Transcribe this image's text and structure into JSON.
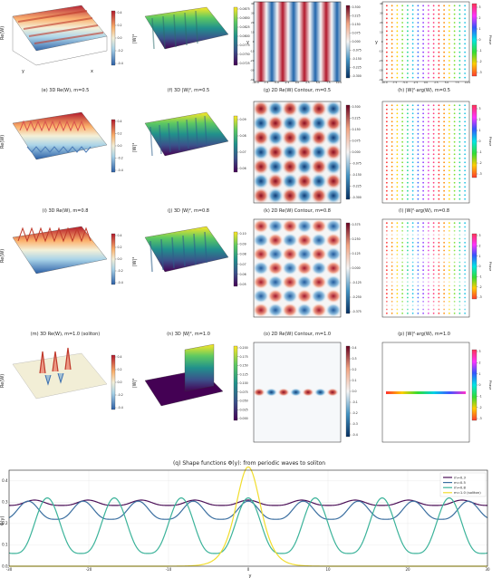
{
  "panels": {
    "row1": {
      "c1": {
        "caption": "",
        "zlabel": "Re(W)",
        "cbar": [
          "0.4",
          "0.2",
          "0.0",
          "-0.2",
          "-0.4"
        ],
        "xlabel": "x",
        "ylabel": "y"
      },
      "c2": {
        "caption": "",
        "zlabel": "|W|²",
        "cbar": [
          "0.0875",
          "0.0850",
          "0.0825",
          "0.0800",
          "0.0775",
          "0.0750",
          "0.0725"
        ],
        "xlabel": "x",
        "ylabel": "y"
      },
      "c3": {
        "caption": "",
        "cbar": [
          "0.300",
          "0.225",
          "0.150",
          "0.075",
          "0.000",
          "-0.075",
          "-0.150",
          "-0.225",
          "-0.300"
        ],
        "xticks": [
          "-10.0",
          "-7.5",
          "-5.0",
          "-2.5",
          "0.0",
          "2.5",
          "5.0",
          "7.5",
          "10.0"
        ],
        "yticks": [
          "40",
          "30",
          "20",
          "10",
          "0",
          "-10",
          "-20",
          "-30",
          "-40"
        ],
        "ylabel": "y"
      },
      "c4": {
        "caption": "",
        "cbar": [
          "3",
          "2",
          "1",
          "0",
          "-1",
          "-2",
          "-3"
        ],
        "cbar_label": "Phase",
        "xticks": [
          "-10.0",
          "-7.5",
          "-5.0",
          "-2.5",
          "0.0",
          "2.5",
          "5.0",
          "7.5",
          "10.0"
        ],
        "yticks": [
          "40",
          "30",
          "20",
          "10",
          "0",
          "-10",
          "-20",
          "-30",
          "-40"
        ],
        "ylabel": "y"
      }
    },
    "row2": {
      "c1": {
        "caption": "(e) 3D Re(W), m=0.5",
        "zlabel": "Re(W)",
        "cbar": [
          "0.4",
          "0.2",
          "0.0",
          "-0.2",
          "-0.4"
        ]
      },
      "c2": {
        "caption": "(f) 3D |W|², m=0.5",
        "zlabel": "|W|²",
        "cbar": [
          "0.09",
          "0.08",
          "0.07",
          "0.06"
        ]
      },
      "c3": {
        "caption": "(g) 2D Re(W) Contour, m=0.5",
        "cbar": [
          "0.300",
          "0.225",
          "0.150",
          "0.075",
          "0.000",
          "-0.075",
          "-0.150",
          "-0.225",
          "-0.300"
        ]
      },
      "c4": {
        "caption": "(h) |W|²·arg(W), m=0.5",
        "cbar": [
          "3",
          "2",
          "1",
          "0",
          "-1",
          "-2",
          "-3"
        ],
        "cbar_label": "Phase"
      }
    },
    "row3": {
      "c1": {
        "caption": "(i) 3D Re(W), m=0.8",
        "zlabel": "Re(W)",
        "cbar": [
          "0.4",
          "0.2",
          "0.0",
          "-0.2",
          "-0.4"
        ]
      },
      "c2": {
        "caption": "(j) 3D |W|², m=0.8",
        "zlabel": "|W|²",
        "cbar": [
          "0.10",
          "0.09",
          "0.08",
          "0.07",
          "0.06",
          "0.05"
        ]
      },
      "c3": {
        "caption": "(k) 2D Re(W) Contour, m=0.8",
        "cbar": [
          "0.375",
          "0.250",
          "0.125",
          "0.000",
          "-0.125",
          "-0.250",
          "-0.375"
        ]
      },
      "c4": {
        "caption": "(l) |W|²·arg(W), m=0.8",
        "cbar": [
          "3",
          "2",
          "1",
          "0",
          "-1",
          "-2",
          "-3"
        ],
        "cbar_label": "Phase"
      }
    },
    "row4": {
      "c1": {
        "caption": "(m) 3D Re(W), m=1.0 (soliton)",
        "zlabel": "Re(W)",
        "cbar": [
          "0.4",
          "0.2",
          "0.0",
          "-0.2",
          "-0.4"
        ]
      },
      "c2": {
        "caption": "(n) 3D |W|², m=1.0",
        "zlabel": "|W|²",
        "cbar": [
          "0.200",
          "0.175",
          "0.150",
          "0.125",
          "0.100",
          "0.075",
          "0.050",
          "0.025",
          "0.000"
        ]
      },
      "c3": {
        "caption": "(o) 2D Re(W) Contour, m=1.0",
        "cbar": [
          "0.4",
          "0.3",
          "0.2",
          "0.1",
          "0.0",
          "-0.1",
          "-0.2",
          "-0.3",
          "-0.4"
        ]
      },
      "c4": {
        "caption": "(p) |W|²·arg(W), m=1.0",
        "cbar": [
          "3",
          "2",
          "1",
          "0",
          "-1",
          "-2",
          "-3"
        ],
        "cbar_label": "Phase"
      }
    }
  },
  "chart_data": {
    "type": "line",
    "title": "(q) Shape functions Φ(y): from periodic waves to soliton",
    "xlabel": "y",
    "ylabel": "Φ(y)",
    "xlim": [
      -30,
      30
    ],
    "ylim": [
      0,
      0.45
    ],
    "xticks": [
      -30,
      -20,
      -10,
      0,
      10,
      20,
      30
    ],
    "yticks": [
      0.0,
      0.1,
      0.2,
      0.3,
      0.4
    ],
    "grid": true,
    "legend_position": "upper right",
    "series": [
      {
        "name": "m=0.3",
        "color": "#4b0f57",
        "kind": "cn",
        "period": 6.7,
        "max": 0.31,
        "min": 0.285
      },
      {
        "name": "m=0.5",
        "color": "#3b6fa0",
        "kind": "cn",
        "period": 6.9,
        "max": 0.305,
        "min": 0.22
      },
      {
        "name": "m=0.8",
        "color": "#3cb39a",
        "kind": "cn",
        "period": 8.4,
        "max": 0.32,
        "min": 0.06
      },
      {
        "name": "m=1.0 (soliton)",
        "color": "#f1dd2d",
        "kind": "sech",
        "center": 0,
        "max": 0.465,
        "width": 2.1
      }
    ]
  }
}
